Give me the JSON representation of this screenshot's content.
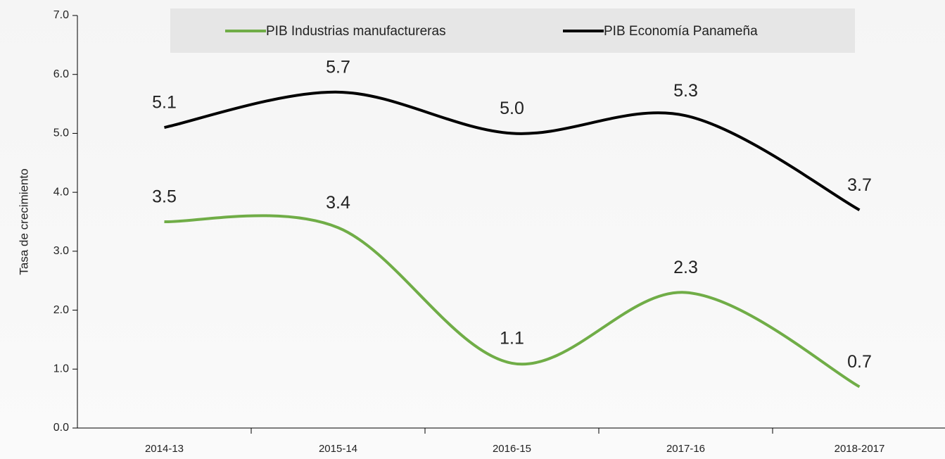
{
  "chart_data": {
    "type": "line",
    "y_label": "Tasa de crecimiento",
    "categories": [
      "2014-13",
      "2015-14",
      "2016-15",
      "2017-16",
      "2018-2017"
    ],
    "series": [
      {
        "name": "PIB Industrias manufactureras",
        "color": "#70ad47",
        "values": [
          3.5,
          3.4,
          1.1,
          2.3,
          0.7
        ],
        "value_labels": [
          "3.5",
          "3.4",
          "1.1",
          "2.3",
          "0.7"
        ]
      },
      {
        "name": "PIB Economía Panameña",
        "color": "#000000",
        "values": [
          5.1,
          5.7,
          5.0,
          5.3,
          3.7
        ],
        "value_labels": [
          "5.1",
          "5.7",
          "5.0",
          "5.3",
          "3.7"
        ]
      }
    ],
    "ylim": [
      0,
      7
    ],
    "yticks": [
      {
        "value": 0,
        "label": "0.0"
      },
      {
        "value": 1,
        "label": "1.0"
      },
      {
        "value": 2,
        "label": "2.0"
      },
      {
        "value": 3,
        "label": "3.0"
      },
      {
        "value": 4,
        "label": "4.0"
      },
      {
        "value": 5,
        "label": "5.0"
      },
      {
        "value": 6,
        "label": "6.0"
      },
      {
        "value": 7,
        "label": "7.0"
      }
    ],
    "smooth": true
  }
}
